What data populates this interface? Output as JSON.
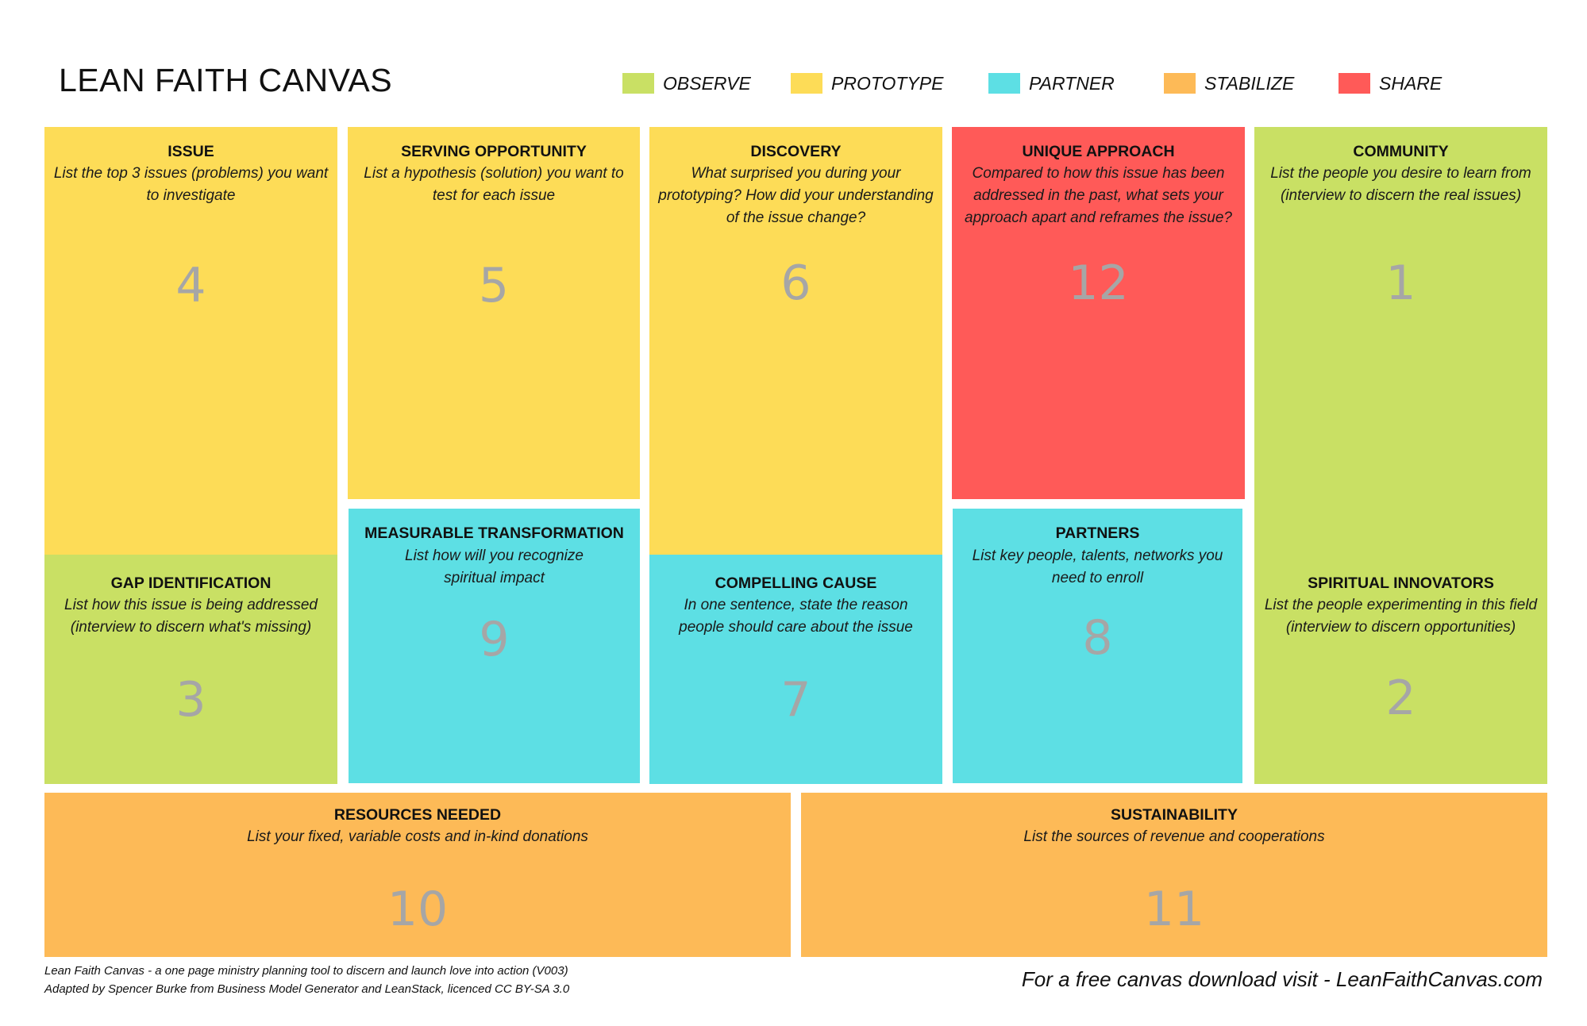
{
  "title": "LEAN FAITH CANVAS",
  "legend": [
    {
      "label": "OBSERVE",
      "color": "#c9e064"
    },
    {
      "label": "PROTOTYPE",
      "color": "#fddc57"
    },
    {
      "label": "PARTNER",
      "color": "#5ddfe4"
    },
    {
      "label": "STABILIZE",
      "color": "#fdba57"
    },
    {
      "label": "SHARE",
      "color": "#ff5a58"
    }
  ],
  "boxes": {
    "issue": {
      "title": "ISSUE",
      "desc": "List the top 3 issues (problems) you want to investigate",
      "number": "4"
    },
    "gap": {
      "title": "GAP IDENTIFICATION",
      "desc": "List how this issue is being addressed (interview to discern what's missing)",
      "number": "3"
    },
    "serving": {
      "title": "SERVING OPPORTUNITY",
      "desc": "List a hypothesis (solution) you want to test for each issue",
      "number": "5"
    },
    "measurable": {
      "title": "MEASURABLE TRANSFORMATION",
      "desc": "List how will you recognize spiritual impact",
      "number": "9"
    },
    "discovery": {
      "title": "DISCOVERY",
      "desc": "What surprised you during your prototyping? How did your understanding of the issue change?",
      "number": "6"
    },
    "compelling": {
      "title": "COMPELLING CAUSE",
      "desc": "In one sentence, state the reason people should care about the issue",
      "number": "7"
    },
    "unique": {
      "title": "UNIQUE APPROACH",
      "desc": "Compared to how this issue has been addressed in the past, what sets your approach apart and reframes the issue?",
      "number": "12"
    },
    "partners": {
      "title": "PARTNERS",
      "desc": "List key people, talents, networks you need to enroll",
      "number": "8"
    },
    "community": {
      "title": "COMMUNITY",
      "desc": "List the people you desire to learn from (interview to discern the real issues)",
      "number": "1"
    },
    "innovators": {
      "title": "SPIRITUAL INNOVATORS",
      "desc": "List the people experimenting in this field (interview to discern opportunities)",
      "number": "2"
    },
    "resources": {
      "title": "RESOURCES NEEDED",
      "desc": "List your fixed, variable costs and in-kind donations",
      "number": "10"
    },
    "sustainability": {
      "title": "SUSTAINABILITY",
      "desc": "List the sources of revenue and cooperations",
      "number": "11"
    }
  },
  "footer": {
    "line1": "Lean Faith Canvas - a one page ministry planning tool to discern and launch love into action (V003)",
    "line2": "Adapted by Spencer Burke from Business Model Generator and LeanStack, licenced CC BY-SA 3.0",
    "right": "For a free canvas download visit - LeanFaithCanvas.com"
  }
}
